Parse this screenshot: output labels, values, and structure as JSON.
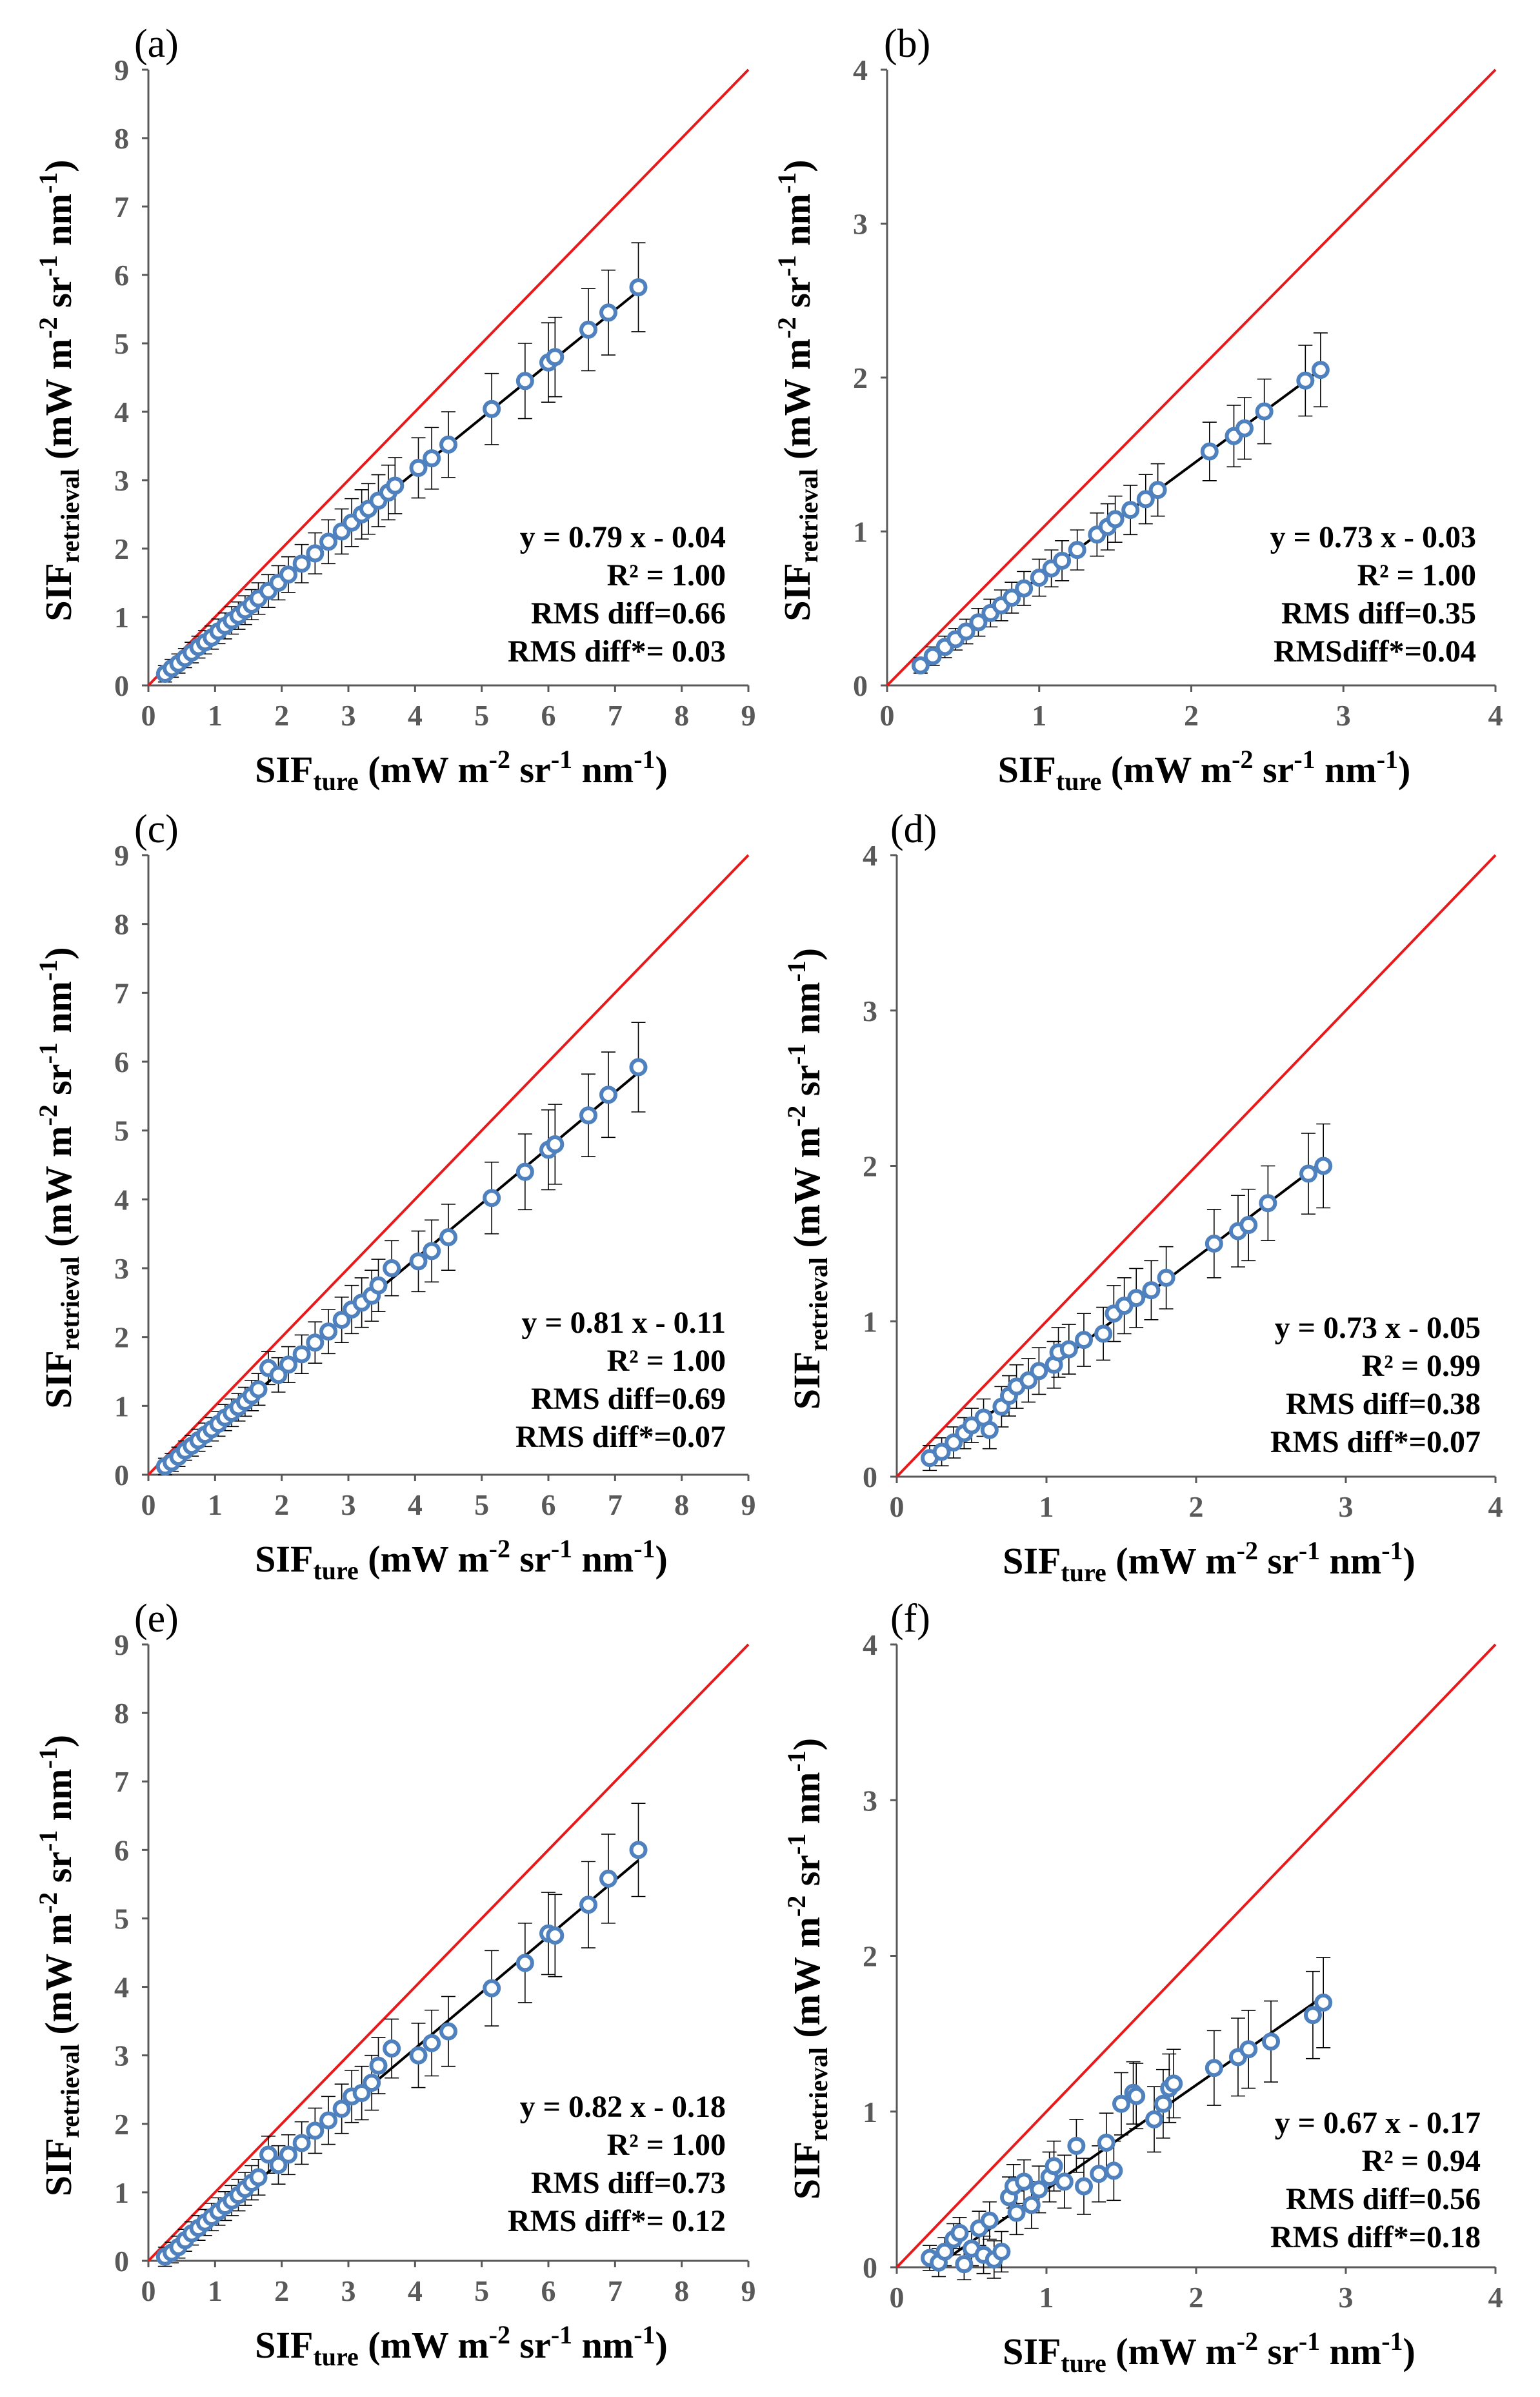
{
  "colors": {
    "one_to_one_line": "#e8191b",
    "fit_line": "#000000",
    "marker": "#4e81bd",
    "error_bar": "#000000",
    "axis": "#595959"
  },
  "chart_data": [
    {
      "type": "scatter",
      "panel": "(a)",
      "xlabel": "SIF",
      "xlabel_subscript": "ture",
      "xlabel_units": " (mW m",
      "units_tail": [
        "-2",
        " sr",
        "-1",
        " nm",
        "-1",
        ")"
      ],
      "ylabel": "SIF",
      "ylabel_subscript": "retrieval",
      "ylabel_units": " (mW m",
      "xlim": [
        0,
        9
      ],
      "ylim": [
        0,
        9
      ],
      "xticks": [
        "0",
        "1",
        "2",
        "3",
        "4",
        "5",
        "6",
        "7",
        "8",
        "9"
      ],
      "yticks": [
        "0",
        "1",
        "2",
        "3",
        "4",
        "5",
        "6",
        "7",
        "8",
        "9"
      ],
      "annotations": [
        "y = 0.79 x - 0.04",
        "R² = 1.00",
        "RMS diff=0.66",
        "RMS diff*= 0.03"
      ],
      "fit": {
        "slope": 0.79,
        "intercept": -0.04,
        "x_range": [
          0.25,
          7.35
        ]
      },
      "points": [
        [
          0.25,
          0.17
        ],
        [
          0.35,
          0.25
        ],
        [
          0.45,
          0.32
        ],
        [
          0.55,
          0.4
        ],
        [
          0.65,
          0.48
        ],
        [
          0.75,
          0.56
        ],
        [
          0.85,
          0.63
        ],
        [
          0.95,
          0.7
        ],
        [
          1.05,
          0.79
        ],
        [
          1.15,
          0.87
        ],
        [
          1.25,
          0.95
        ],
        [
          1.35,
          1.02
        ],
        [
          1.45,
          1.1
        ],
        [
          1.55,
          1.18
        ],
        [
          1.65,
          1.27
        ],
        [
          1.8,
          1.38
        ],
        [
          1.95,
          1.5
        ],
        [
          2.1,
          1.62
        ],
        [
          2.3,
          1.78
        ],
        [
          2.5,
          1.93
        ],
        [
          2.7,
          2.1
        ],
        [
          2.9,
          2.25
        ],
        [
          3.05,
          2.38
        ],
        [
          3.2,
          2.5
        ],
        [
          3.3,
          2.58
        ],
        [
          3.45,
          2.7
        ],
        [
          3.6,
          2.82
        ],
        [
          3.7,
          2.92
        ],
        [
          4.05,
          3.18
        ],
        [
          4.25,
          3.32
        ],
        [
          4.5,
          3.52
        ],
        [
          5.15,
          4.04
        ],
        [
          5.65,
          4.45
        ],
        [
          6.0,
          4.72
        ],
        [
          6.1,
          4.8
        ],
        [
          6.6,
          5.2
        ],
        [
          6.9,
          5.45
        ],
        [
          7.35,
          5.82
        ]
      ],
      "errors": [
        0.12,
        0.13,
        0.14,
        0.14,
        0.15,
        0.16,
        0.17,
        0.17,
        0.18,
        0.19,
        0.2,
        0.2,
        0.21,
        0.22,
        0.23,
        0.24,
        0.25,
        0.26,
        0.28,
        0.3,
        0.32,
        0.33,
        0.35,
        0.36,
        0.37,
        0.38,
        0.4,
        0.41,
        0.44,
        0.45,
        0.48,
        0.52,
        0.55,
        0.58,
        0.58,
        0.6,
        0.62,
        0.65
      ]
    },
    {
      "type": "scatter",
      "panel": "(b)",
      "xlabel": "SIF",
      "xlabel_subscript": "ture",
      "xlabel_units": " (mW m",
      "units_tail": [
        "-2",
        " sr",
        "-1",
        " nm",
        "-1",
        ")"
      ],
      "ylabel": "SIF",
      "ylabel_subscript": "retrieval",
      "ylabel_units": " (mW m",
      "xlim": [
        0,
        4
      ],
      "ylim": [
        0,
        4
      ],
      "xticks": [
        "0",
        "1",
        "2",
        "3",
        "4"
      ],
      "yticks": [
        "0",
        "1",
        "2",
        "3",
        "4"
      ],
      "annotations": [
        "y = 0.73 x - 0.03",
        "R² = 1.00",
        "RMS diff=0.35",
        "RMSdiff*=0.04"
      ],
      "fit": {
        "slope": 0.73,
        "intercept": -0.03,
        "x_range": [
          0.22,
          2.85
        ]
      },
      "points": [
        [
          0.22,
          0.13
        ],
        [
          0.3,
          0.19
        ],
        [
          0.38,
          0.25
        ],
        [
          0.45,
          0.3
        ],
        [
          0.52,
          0.35
        ],
        [
          0.6,
          0.41
        ],
        [
          0.68,
          0.47
        ],
        [
          0.75,
          0.52
        ],
        [
          0.82,
          0.57
        ],
        [
          0.9,
          0.63
        ],
        [
          1.0,
          0.7
        ],
        [
          1.08,
          0.76
        ],
        [
          1.15,
          0.81
        ],
        [
          1.25,
          0.88
        ],
        [
          1.38,
          0.98
        ],
        [
          1.45,
          1.03
        ],
        [
          1.5,
          1.08
        ],
        [
          1.6,
          1.14
        ],
        [
          1.7,
          1.21
        ],
        [
          1.78,
          1.27
        ],
        [
          2.12,
          1.52
        ],
        [
          2.28,
          1.62
        ],
        [
          2.35,
          1.67
        ],
        [
          2.48,
          1.78
        ],
        [
          2.75,
          1.98
        ],
        [
          2.85,
          2.05
        ]
      ],
      "errors": [
        0.05,
        0.06,
        0.07,
        0.07,
        0.08,
        0.09,
        0.09,
        0.1,
        0.1,
        0.11,
        0.12,
        0.12,
        0.13,
        0.13,
        0.14,
        0.15,
        0.15,
        0.16,
        0.16,
        0.17,
        0.19,
        0.2,
        0.2,
        0.21,
        0.23,
        0.24
      ]
    },
    {
      "type": "scatter",
      "panel": "(c)",
      "xlabel": "SIF",
      "xlabel_subscript": "ture",
      "xlabel_units": " (mW m",
      "units_tail": [
        "-2",
        " sr",
        "-1",
        " nm",
        "-1",
        ")"
      ],
      "ylabel": "SIF",
      "ylabel_subscript": "retrieval",
      "ylabel_units": " (mW m",
      "xlim": [
        0,
        9
      ],
      "ylim": [
        0,
        9
      ],
      "xticks": [
        "0",
        "1",
        "2",
        "3",
        "4",
        "5",
        "6",
        "7",
        "8",
        "9"
      ],
      "yticks": [
        "0",
        "1",
        "2",
        "3",
        "4",
        "5",
        "6",
        "7",
        "8",
        "9"
      ],
      "annotations": [
        "y = 0.81 x - 0.11",
        "R² = 1.00",
        "RMS diff=0.69",
        "RMS diff*=0.07"
      ],
      "fit": {
        "slope": 0.81,
        "intercept": -0.11,
        "x_range": [
          0.25,
          7.35
        ]
      },
      "points": [
        [
          0.25,
          0.12
        ],
        [
          0.35,
          0.18
        ],
        [
          0.45,
          0.26
        ],
        [
          0.55,
          0.35
        ],
        [
          0.65,
          0.42
        ],
        [
          0.75,
          0.5
        ],
        [
          0.85,
          0.58
        ],
        [
          0.95,
          0.66
        ],
        [
          1.05,
          0.74
        ],
        [
          1.15,
          0.83
        ],
        [
          1.25,
          0.9
        ],
        [
          1.35,
          0.98
        ],
        [
          1.45,
          1.06
        ],
        [
          1.55,
          1.15
        ],
        [
          1.65,
          1.24
        ],
        [
          1.8,
          1.55
        ],
        [
          1.95,
          1.45
        ],
        [
          2.1,
          1.6
        ],
        [
          2.3,
          1.75
        ],
        [
          2.5,
          1.92
        ],
        [
          2.7,
          2.08
        ],
        [
          2.9,
          2.25
        ],
        [
          3.05,
          2.4
        ],
        [
          3.2,
          2.5
        ],
        [
          3.35,
          2.6
        ],
        [
          3.45,
          2.75
        ],
        [
          3.65,
          3.0
        ],
        [
          4.05,
          3.1
        ],
        [
          4.25,
          3.25
        ],
        [
          4.5,
          3.45
        ],
        [
          5.15,
          4.02
        ],
        [
          5.65,
          4.4
        ],
        [
          6.0,
          4.72
        ],
        [
          6.1,
          4.8
        ],
        [
          6.6,
          5.22
        ],
        [
          6.9,
          5.52
        ],
        [
          7.35,
          5.92
        ]
      ],
      "errors": [
        0.12,
        0.13,
        0.14,
        0.14,
        0.15,
        0.16,
        0.17,
        0.17,
        0.18,
        0.19,
        0.2,
        0.2,
        0.21,
        0.22,
        0.23,
        0.24,
        0.25,
        0.26,
        0.28,
        0.3,
        0.32,
        0.33,
        0.35,
        0.36,
        0.37,
        0.38,
        0.4,
        0.44,
        0.45,
        0.48,
        0.52,
        0.55,
        0.58,
        0.58,
        0.6,
        0.62,
        0.65
      ]
    },
    {
      "type": "scatter",
      "panel": "(d)",
      "xlabel": "SIF",
      "xlabel_subscript": "ture",
      "xlabel_units": " (mW m",
      "units_tail": [
        "-2",
        " sr",
        "-1",
        " nm",
        "-1",
        ")"
      ],
      "ylabel": "SIF",
      "ylabel_subscript": "retrieval",
      "ylabel_units": " (mW m",
      "xlim": [
        0,
        4
      ],
      "ylim": [
        0,
        4
      ],
      "xticks": [
        "0",
        "1",
        "2",
        "3",
        "4"
      ],
      "yticks": [
        "0",
        "1",
        "2",
        "3",
        "4"
      ],
      "annotations": [
        "y = 0.73 x - 0.05",
        "R² = 0.99",
        "RMS diff=0.38",
        "RMS diff*=0.07"
      ],
      "fit": {
        "slope": 0.73,
        "intercept": -0.05,
        "x_range": [
          0.22,
          2.85
        ]
      },
      "points": [
        [
          0.22,
          0.12
        ],
        [
          0.3,
          0.16
        ],
        [
          0.38,
          0.22
        ],
        [
          0.45,
          0.28
        ],
        [
          0.5,
          0.33
        ],
        [
          0.58,
          0.38
        ],
        [
          0.62,
          0.3
        ],
        [
          0.7,
          0.45
        ],
        [
          0.75,
          0.52
        ],
        [
          0.8,
          0.58
        ],
        [
          0.88,
          0.62
        ],
        [
          0.95,
          0.68
        ],
        [
          1.05,
          0.72
        ],
        [
          1.08,
          0.8
        ],
        [
          1.15,
          0.82
        ],
        [
          1.25,
          0.88
        ],
        [
          1.38,
          0.92
        ],
        [
          1.45,
          1.05
        ],
        [
          1.52,
          1.1
        ],
        [
          1.6,
          1.15
        ],
        [
          1.7,
          1.2
        ],
        [
          1.8,
          1.28
        ],
        [
          2.12,
          1.5
        ],
        [
          2.28,
          1.58
        ],
        [
          2.35,
          1.62
        ],
        [
          2.48,
          1.76
        ],
        [
          2.75,
          1.95
        ],
        [
          2.85,
          2.0
        ]
      ],
      "errors": [
        0.08,
        0.09,
        0.1,
        0.1,
        0.11,
        0.12,
        0.12,
        0.13,
        0.13,
        0.14,
        0.14,
        0.15,
        0.15,
        0.16,
        0.16,
        0.17,
        0.17,
        0.18,
        0.18,
        0.19,
        0.19,
        0.2,
        0.22,
        0.23,
        0.23,
        0.24,
        0.26,
        0.27
      ]
    },
    {
      "type": "scatter",
      "panel": "(e)",
      "xlabel": "SIF",
      "xlabel_subscript": "ture",
      "xlabel_units": " (mW m",
      "units_tail": [
        "-2",
        " sr",
        "-1",
        " nm",
        "-1",
        ")"
      ],
      "ylabel": "SIF",
      "ylabel_subscript": "retrieval",
      "ylabel_units": " (mW m",
      "xlim": [
        0,
        9
      ],
      "ylim": [
        0,
        9
      ],
      "xticks": [
        "0",
        "1",
        "2",
        "3",
        "4",
        "5",
        "6",
        "7",
        "8",
        "9"
      ],
      "yticks": [
        "0",
        "1",
        "2",
        "3",
        "4",
        "5",
        "6",
        "7",
        "8",
        "9"
      ],
      "annotations": [
        "y = 0.82 x - 0.18",
        "R² = 1.00",
        "RMS diff=0.73",
        "RMS diff*= 0.12"
      ],
      "fit": {
        "slope": 0.82,
        "intercept": -0.18,
        "x_range": [
          0.25,
          7.35
        ]
      },
      "points": [
        [
          0.25,
          0.06
        ],
        [
          0.35,
          0.12
        ],
        [
          0.45,
          0.2
        ],
        [
          0.55,
          0.3
        ],
        [
          0.65,
          0.4
        ],
        [
          0.75,
          0.48
        ],
        [
          0.85,
          0.56
        ],
        [
          0.95,
          0.64
        ],
        [
          1.05,
          0.72
        ],
        [
          1.15,
          0.8
        ],
        [
          1.25,
          0.88
        ],
        [
          1.35,
          0.96
        ],
        [
          1.45,
          1.05
        ],
        [
          1.55,
          1.14
        ],
        [
          1.65,
          1.22
        ],
        [
          1.8,
          1.55
        ],
        [
          1.95,
          1.4
        ],
        [
          2.1,
          1.55
        ],
        [
          2.3,
          1.72
        ],
        [
          2.5,
          1.9
        ],
        [
          2.7,
          2.05
        ],
        [
          2.9,
          2.22
        ],
        [
          3.05,
          2.4
        ],
        [
          3.2,
          2.45
        ],
        [
          3.35,
          2.6
        ],
        [
          3.45,
          2.85
        ],
        [
          3.65,
          3.1
        ],
        [
          4.05,
          3.0
        ],
        [
          4.25,
          3.18
        ],
        [
          4.5,
          3.35
        ],
        [
          5.15,
          3.98
        ],
        [
          5.65,
          4.35
        ],
        [
          6.0,
          4.78
        ],
        [
          6.1,
          4.75
        ],
        [
          6.6,
          5.2
        ],
        [
          6.9,
          5.58
        ],
        [
          7.35,
          6.0
        ]
      ],
      "errors": [
        0.14,
        0.15,
        0.16,
        0.16,
        0.17,
        0.18,
        0.19,
        0.2,
        0.2,
        0.21,
        0.22,
        0.23,
        0.24,
        0.25,
        0.26,
        0.27,
        0.28,
        0.29,
        0.31,
        0.33,
        0.35,
        0.36,
        0.38,
        0.39,
        0.4,
        0.41,
        0.43,
        0.47,
        0.48,
        0.51,
        0.55,
        0.58,
        0.6,
        0.6,
        0.63,
        0.65,
        0.68
      ]
    },
    {
      "type": "scatter",
      "panel": "(f)",
      "xlabel": "SIF",
      "xlabel_subscript": "ture",
      "xlabel_units": " (mW m",
      "units_tail": [
        "-2",
        " sr",
        "-1",
        " nm",
        "-1",
        ")"
      ],
      "ylabel": "SIF",
      "ylabel_subscript": "retrieval",
      "ylabel_units": " (mW m",
      "xlim": [
        0,
        4
      ],
      "ylim": [
        0,
        4
      ],
      "xticks": [
        "0",
        "1",
        "2",
        "3",
        "4"
      ],
      "yticks": [
        "0",
        "1",
        "2",
        "3",
        "4"
      ],
      "annotations": [
        "y = 0.67 x - 0.17",
        "R² = 0.94",
        "RMS diff=0.56",
        "RMS diff*=0.18"
      ],
      "fit": {
        "slope": 0.67,
        "intercept": -0.17,
        "x_range": [
          0.28,
          2.85
        ]
      },
      "points": [
        [
          0.22,
          0.06
        ],
        [
          0.28,
          0.03
        ],
        [
          0.32,
          0.1
        ],
        [
          0.38,
          0.18
        ],
        [
          0.42,
          0.22
        ],
        [
          0.45,
          0.02
        ],
        [
          0.5,
          0.12
        ],
        [
          0.55,
          0.25
        ],
        [
          0.58,
          0.08
        ],
        [
          0.62,
          0.3
        ],
        [
          0.65,
          0.05
        ],
        [
          0.7,
          0.1
        ],
        [
          0.75,
          0.45
        ],
        [
          0.78,
          0.52
        ],
        [
          0.8,
          0.35
        ],
        [
          0.85,
          0.55
        ],
        [
          0.9,
          0.4
        ],
        [
          0.95,
          0.5
        ],
        [
          1.02,
          0.58
        ],
        [
          1.05,
          0.65
        ],
        [
          1.12,
          0.55
        ],
        [
          1.2,
          0.78
        ],
        [
          1.25,
          0.52
        ],
        [
          1.35,
          0.6
        ],
        [
          1.4,
          0.8
        ],
        [
          1.45,
          0.62
        ],
        [
          1.5,
          1.05
        ],
        [
          1.58,
          1.12
        ],
        [
          1.6,
          1.1
        ],
        [
          1.72,
          0.95
        ],
        [
          1.78,
          1.05
        ],
        [
          1.82,
          1.15
        ],
        [
          1.85,
          1.18
        ],
        [
          2.12,
          1.28
        ],
        [
          2.28,
          1.35
        ],
        [
          2.35,
          1.4
        ],
        [
          2.5,
          1.45
        ],
        [
          2.78,
          1.62
        ],
        [
          2.85,
          1.7
        ]
      ],
      "errors": [
        0.08,
        0.09,
        0.09,
        0.1,
        0.1,
        0.1,
        0.11,
        0.11,
        0.12,
        0.12,
        0.12,
        0.13,
        0.13,
        0.14,
        0.14,
        0.14,
        0.15,
        0.15,
        0.16,
        0.16,
        0.17,
        0.17,
        0.18,
        0.18,
        0.19,
        0.19,
        0.2,
        0.2,
        0.21,
        0.21,
        0.22,
        0.22,
        0.22,
        0.24,
        0.25,
        0.25,
        0.26,
        0.28,
        0.29
      ]
    }
  ]
}
